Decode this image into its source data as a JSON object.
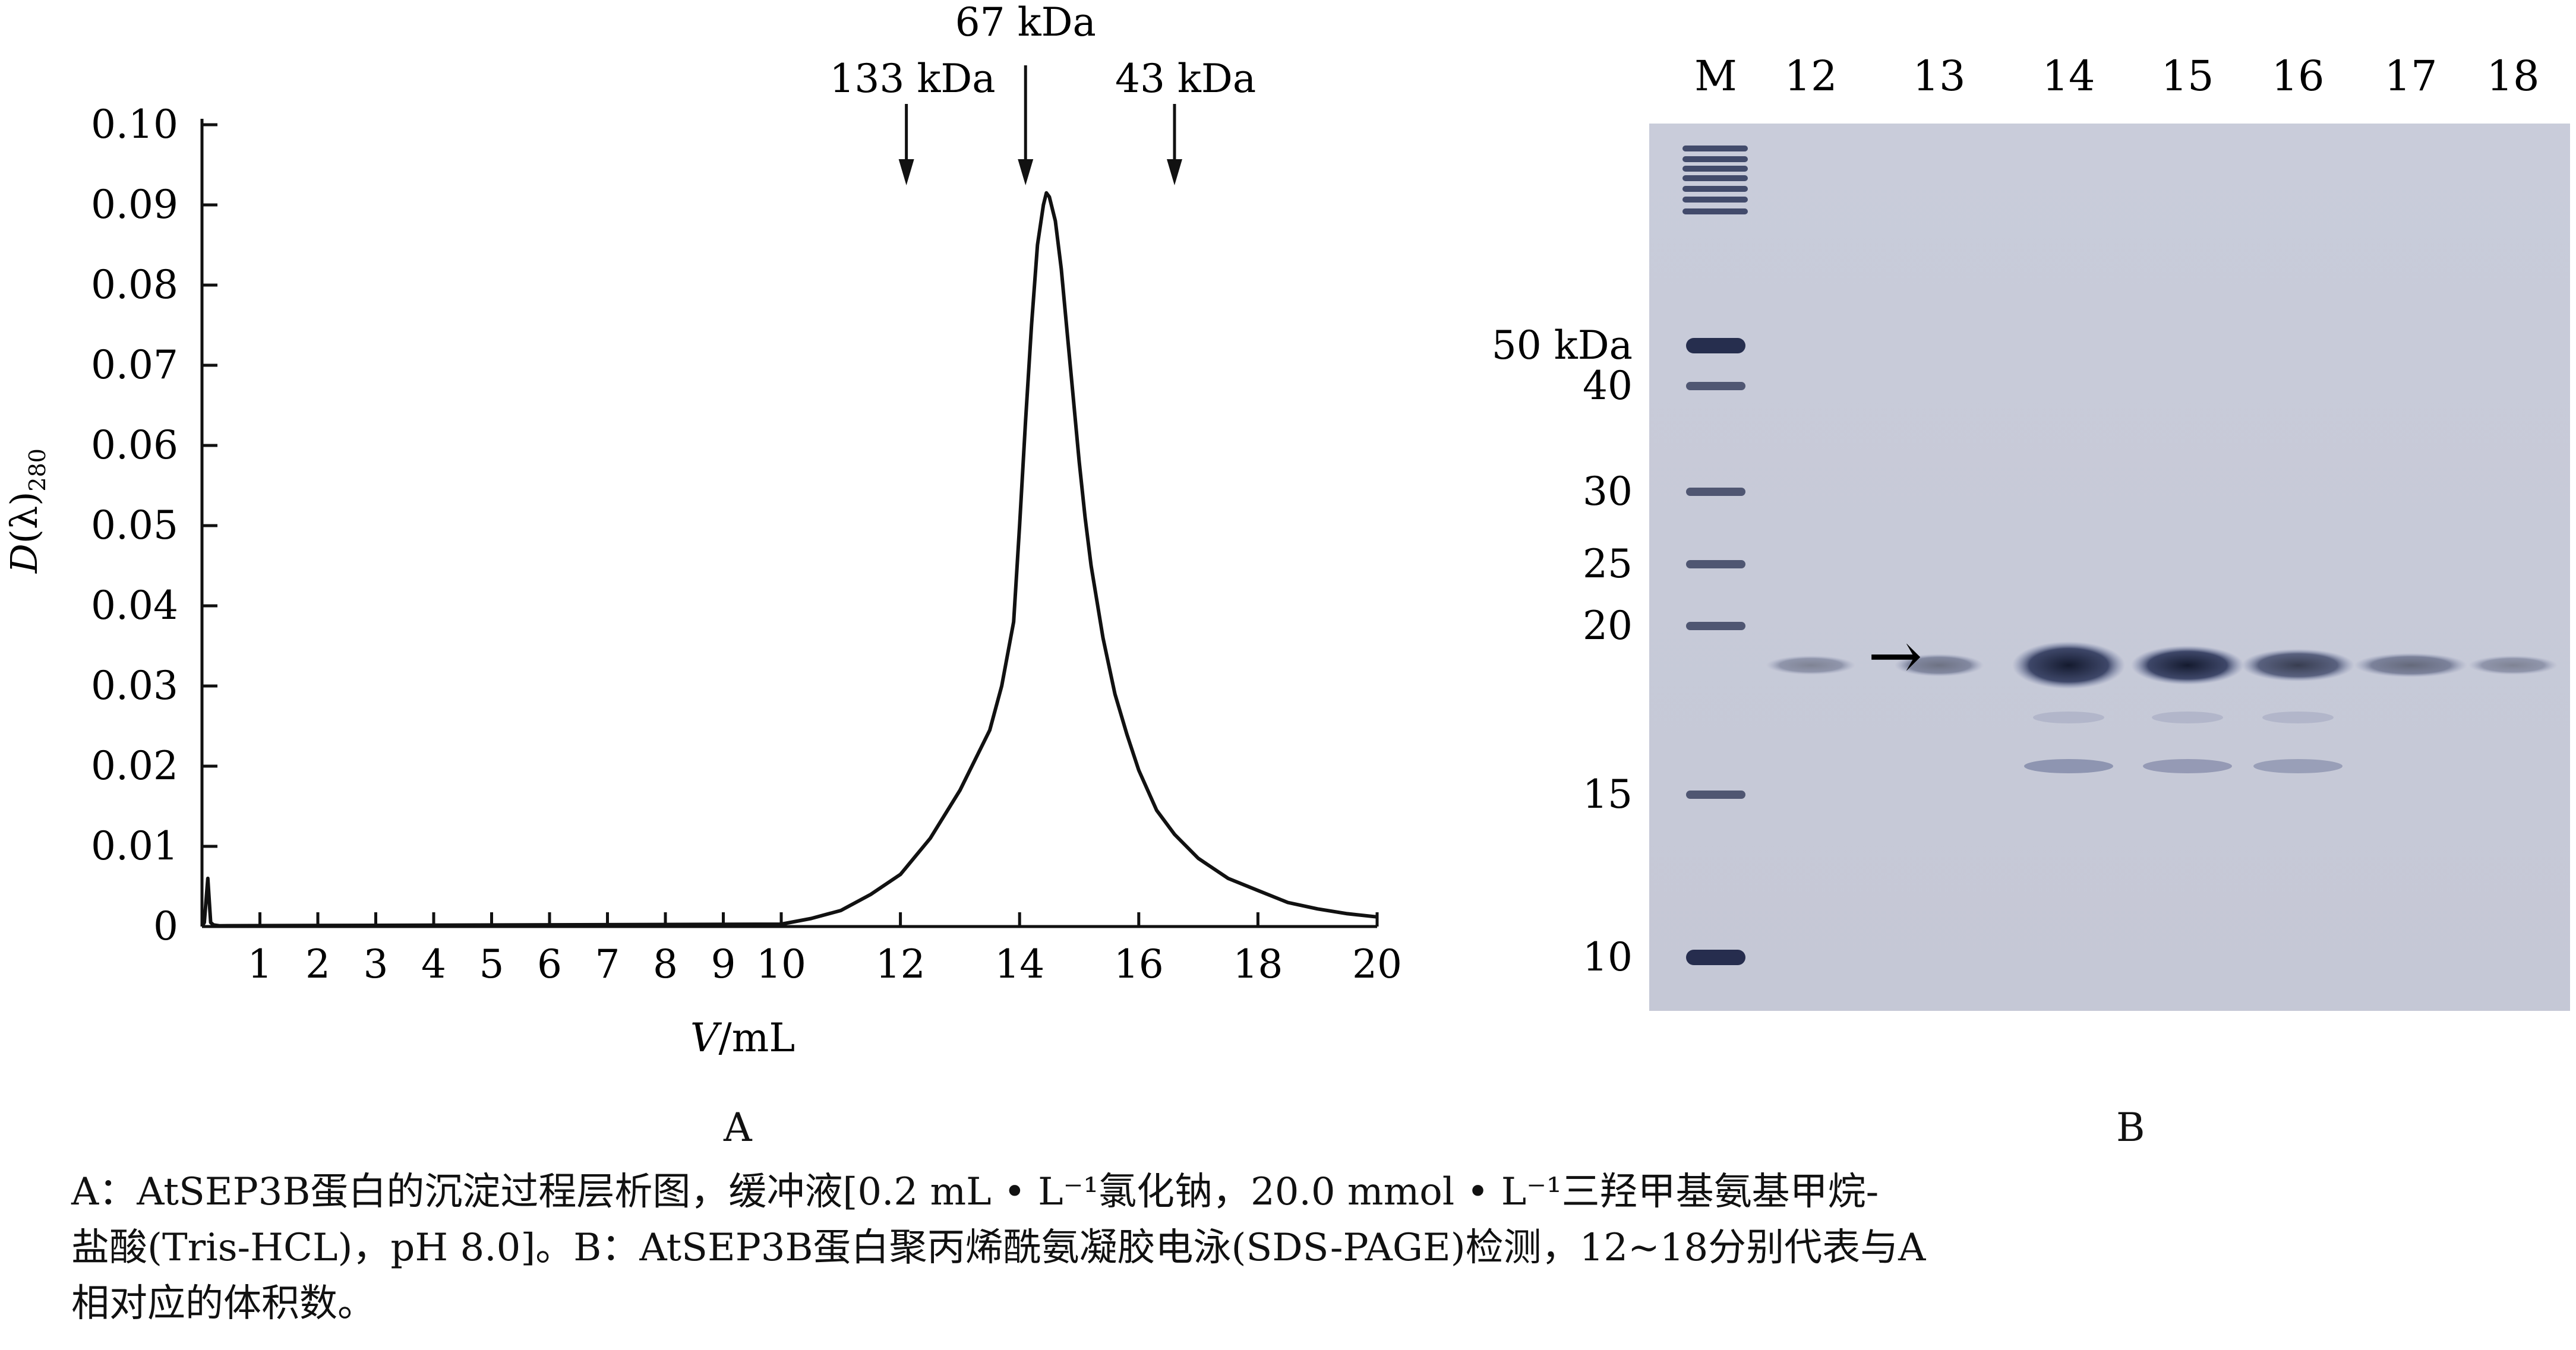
{
  "figure": {
    "panel_a_label": "A",
    "panel_b_label": "B",
    "caption_lines": [
      "A：AtSEP3B蛋白的沉淀过程层析图，缓冲液[0.2 mL • L⁻¹氯化钠，20.0 mmol • L⁻¹三羟甲基氨基甲烷-",
      "盐酸(Tris-HCL)，pH 8.0]。B：AtSEP3B蛋白聚丙烯酰氨凝胶电泳(SDS-PAGE)检测，12~18分别代表与A",
      "相对应的体积数。"
    ]
  },
  "chart_data": [
    {
      "type": "line",
      "title": "",
      "xlabel_italic": "V",
      "xlabel_unit": "/mL",
      "ylabel_italic": "D",
      "ylabel_rest": "(λ)",
      "ylabel_sub": "280",
      "xlim": [
        0,
        20
      ],
      "ylim": [
        0,
        0.1
      ],
      "x_ticks_left": [
        "1",
        "2",
        "3",
        "4",
        "5",
        "6",
        "7",
        "8",
        "9",
        "10"
      ],
      "x_ticks_right": [
        "12",
        "14",
        "16",
        "18",
        "20"
      ],
      "y_ticks": [
        "0",
        "0.01",
        "0.02",
        "0.03",
        "0.04",
        "0.05",
        "0.06",
        "0.07",
        "0.08",
        "0.09",
        "0.10"
      ],
      "markers": [
        {
          "label": "133  kDa",
          "x": 12.1
        },
        {
          "label": "67 kDa",
          "x": 14.1
        },
        {
          "label": "43 kDa",
          "x": 16.6
        }
      ],
      "series": [
        {
          "x": [
            0,
            0.04,
            0.1,
            0.15,
            0.2,
            0.3,
            10,
            10.5,
            11,
            11.5,
            12,
            12.5,
            13,
            13.5,
            13.7,
            13.9,
            14.0,
            14.1,
            14.2,
            14.3,
            14.4,
            14.45,
            14.5,
            14.6,
            14.7,
            14.8,
            14.9,
            15.0,
            15.1,
            15.2,
            15.4,
            15.6,
            15.8,
            16.0,
            16.3,
            16.6,
            17.0,
            17.5,
            18.0,
            18.5,
            19.0,
            19.5,
            20.0
          ],
          "y": [
            0,
            0.0005,
            0.006,
            0.0005,
            0.0002,
            0.0001,
            0.0003,
            0.001,
            0.002,
            0.004,
            0.0065,
            0.011,
            0.017,
            0.0245,
            0.03,
            0.038,
            0.05,
            0.063,
            0.075,
            0.085,
            0.09,
            0.0915,
            0.091,
            0.088,
            0.082,
            0.074,
            0.066,
            0.058,
            0.051,
            0.045,
            0.036,
            0.029,
            0.024,
            0.0195,
            0.0145,
            0.0115,
            0.0085,
            0.006,
            0.0045,
            0.003,
            0.0022,
            0.0016,
            0.0012
          ]
        }
      ]
    },
    {
      "type": "gel",
      "lane_labels": [
        "M",
        "12",
        "13",
        "14",
        "15",
        "16",
        "17",
        "18"
      ],
      "marker_labels": [
        "50 kDa",
        "40",
        "30",
        "25",
        "20",
        "15",
        "10"
      ],
      "target_band_arrow": "→",
      "band_intensity_by_lane": {
        "12": 0.15,
        "13": 0.25,
        "14": 1.0,
        "15": 0.75,
        "16": 0.55,
        "17": 0.3,
        "18": 0.15
      }
    }
  ]
}
